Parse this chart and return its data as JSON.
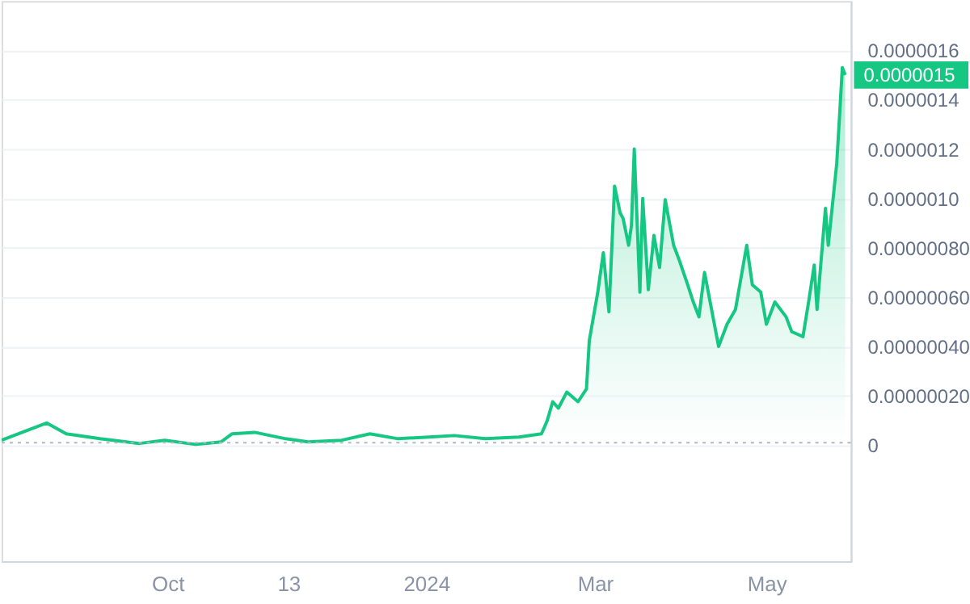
{
  "chart_data": {
    "type": "area",
    "x": [
      "2023-08-03",
      "2023-08-19",
      "2023-08-26",
      "2023-09-07",
      "2023-09-21",
      "2023-09-30",
      "2023-10-11",
      "2023-10-20",
      "2023-10-24",
      "2023-11-01",
      "2023-11-12",
      "2023-11-20",
      "2023-12-02",
      "2023-12-12",
      "2023-12-22",
      "2024-01-02",
      "2024-01-11",
      "2024-01-22",
      "2024-02-03",
      "2024-02-11",
      "2024-02-13",
      "2024-02-15",
      "2024-02-17",
      "2024-02-20",
      "2024-02-24",
      "2024-02-27",
      "2024-02-28",
      "2024-03-02",
      "2024-03-04",
      "2024-03-06",
      "2024-03-08",
      "2024-03-10",
      "2024-03-11",
      "2024-03-13",
      "2024-03-14",
      "2024-03-15",
      "2024-03-17",
      "2024-03-18",
      "2024-03-20",
      "2024-03-22",
      "2024-03-24",
      "2024-03-26",
      "2024-03-29",
      "2024-03-31",
      "2024-04-03",
      "2024-04-05",
      "2024-04-07",
      "2024-04-09",
      "2024-04-11",
      "2024-04-14",
      "2024-04-17",
      "2024-04-20",
      "2024-04-24",
      "2024-04-26",
      "2024-04-29",
      "2024-05-01",
      "2024-05-04",
      "2024-05-08",
      "2024-05-10",
      "2024-05-14",
      "2024-05-16",
      "2024-05-18",
      "2024-05-19",
      "2024-05-22",
      "2024-05-23",
      "2024-05-26",
      "2024-05-27",
      "2024-05-28",
      "2024-05-29"
    ],
    "series": [
      {
        "color": "#16c784",
        "values": [
          2e-08,
          9e-08,
          4.6e-08,
          2.6e-08,
          7e-09,
          2e-08,
          3e-09,
          1.3e-08,
          4.6e-08,
          5.2e-08,
          2.6e-08,
          1.3e-08,
          2e-08,
          4.6e-08,
          2.6e-08,
          3.3e-08,
          3.9e-08,
          2.6e-08,
          3.3e-08,
          4.6e-08,
          9.8e-08,
          1.76e-07,
          1.5e-07,
          2.15e-07,
          1.76e-07,
          2.28e-07,
          4.23e-07,
          6.18e-07,
          7.8e-07,
          5.4e-07,
          1.05e-06,
          9.4e-07,
          9.2e-07,
          8.1e-07,
          8.9e-07,
          1.2e-06,
          6.2e-07,
          1e-06,
          6.3e-07,
          8.5e-07,
          7.2e-07,
          9.95e-07,
          8.1e-07,
          7.5e-07,
          6.5e-07,
          5.8e-07,
          5.2e-07,
          7e-07,
          5.8e-07,
          4e-07,
          4.9e-07,
          5.5e-07,
          8.1e-07,
          6.5e-07,
          6.2e-07,
          4.9e-07,
          5.8e-07,
          5.2e-07,
          4.6e-07,
          4.4e-07,
          5.8e-07,
          7.3e-07,
          5.5e-07,
          9.6e-07,
          8.1e-07,
          1.14e-06,
          1.33e-06,
          1.53e-06,
          1.5e-06
        ]
      }
    ],
    "xlim": [
      "2023-08-03",
      "2024-05-31"
    ],
    "xticks": [
      {
        "value": "2023-10-01",
        "label": "Oct"
      },
      {
        "value": "2023-11-13",
        "label": "13"
      },
      {
        "value": "2024-01-01",
        "label": "2024"
      },
      {
        "value": "2024-03-01",
        "label": "Mar"
      },
      {
        "value": "2024-05-01",
        "label": "May"
      }
    ],
    "ylim": [
      -4.7e-07,
      1.8e-06
    ],
    "yticks": [
      0,
      {
        "value": 2e-07,
        "label": "0.00000020"
      },
      {
        "value": 4e-07,
        "label": "0.00000040"
      },
      {
        "value": 6e-07,
        "label": "0.00000060"
      },
      {
        "value": 8e-07,
        "label": "0.00000080"
      },
      {
        "value": 1e-06,
        "label": "0.0000010"
      },
      {
        "value": 1.2e-06,
        "label": "0.0000012"
      },
      {
        "value": 1.4e-06,
        "label": "0.0000014"
      },
      {
        "value": 1.6e-06,
        "label": "0.0000016"
      }
    ],
    "grid": "y",
    "ref_lines": [
      {
        "axis": "y",
        "value": 1e-08,
        "line_style": "dotted",
        "color": "#b0b8c4"
      }
    ],
    "annotations": [
      {
        "text": "0.0000015",
        "x": "2024-05-29",
        "y": 1.5e-06
      }
    ]
  }
}
